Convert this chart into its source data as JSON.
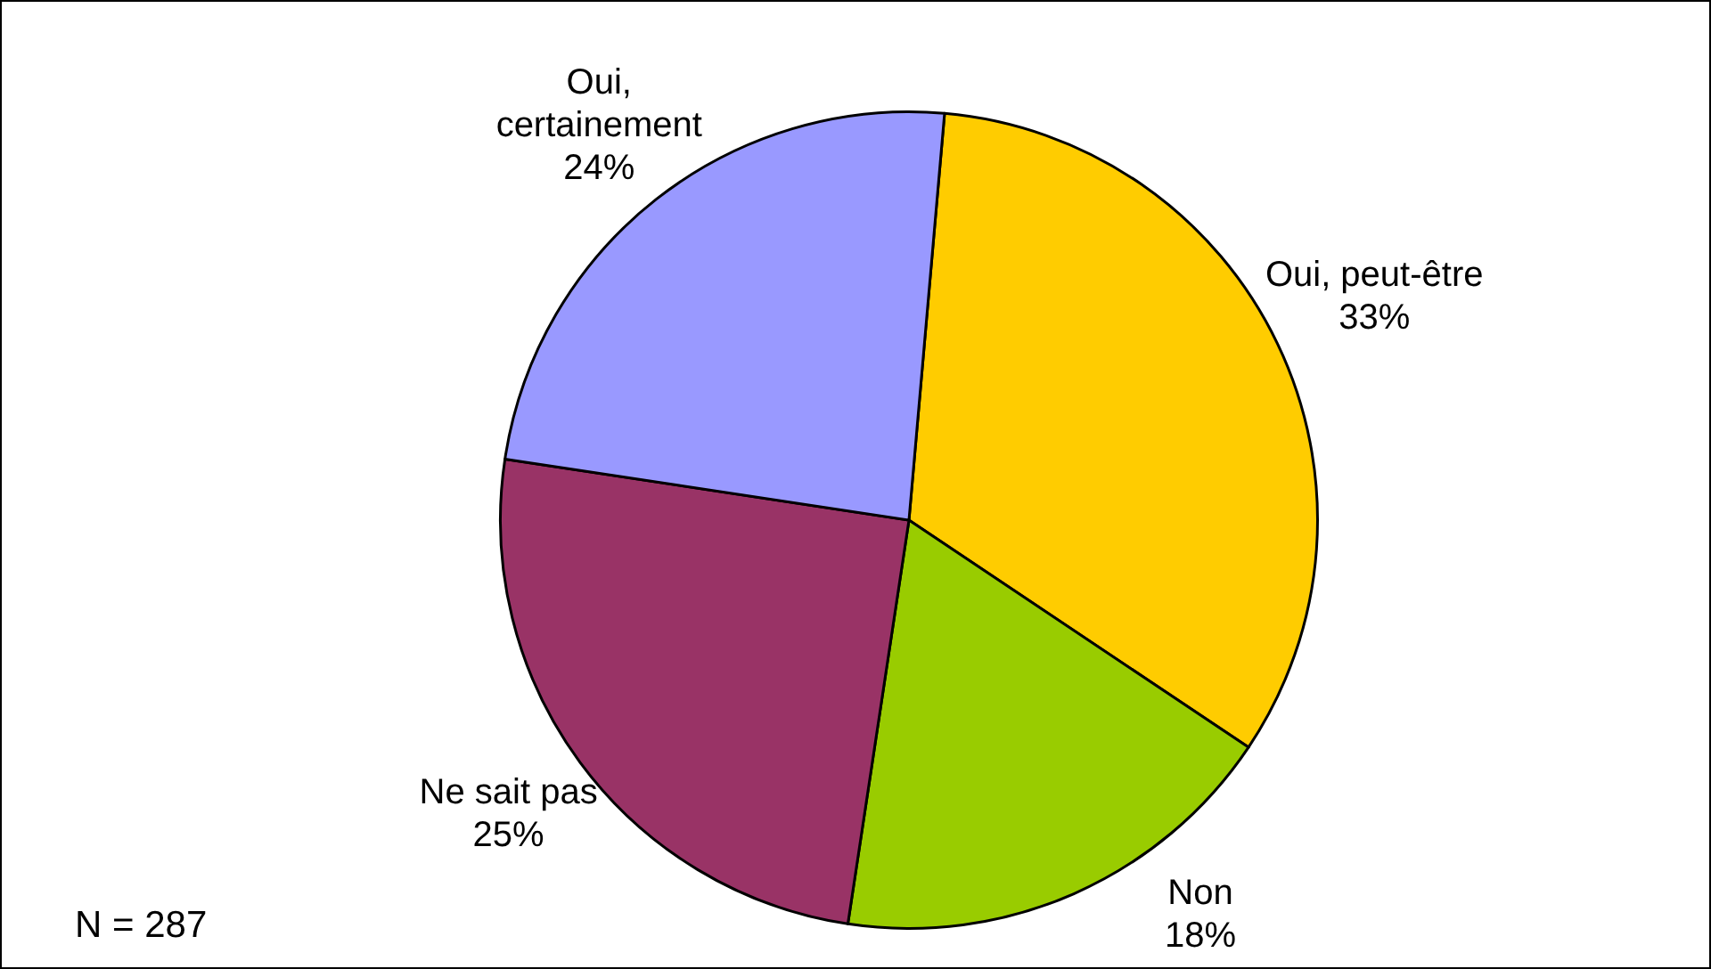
{
  "chart_data": {
    "type": "pie",
    "categories": [
      "Oui, peut-être",
      "Non",
      "Ne sait pas",
      "Oui, certainement"
    ],
    "values": [
      33,
      18,
      25,
      24
    ],
    "value_labels": [
      "33%",
      "18%",
      "25%",
      "24%"
    ],
    "colors": [
      "#ffcc00",
      "#99cc00",
      "#993366",
      "#9999ff"
    ],
    "legend": false,
    "annotations": [
      "N = 287"
    ]
  }
}
